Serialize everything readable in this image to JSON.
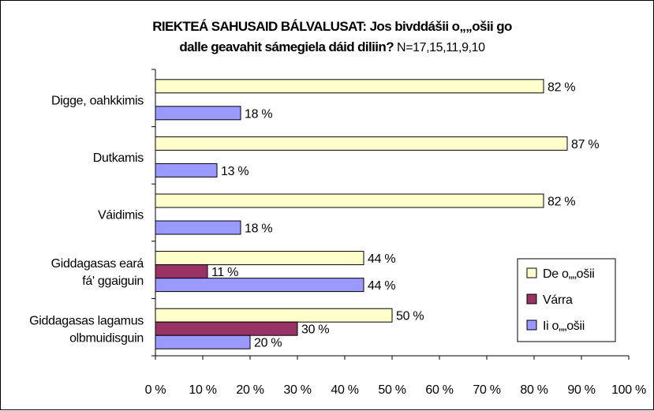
{
  "chart_data": {
    "type": "bar",
    "orientation": "horizontal",
    "title": "RIEKTEÁ SAHUSAID BÁLVALUSAT: Jos bivddášii o„„ošii go dalle geavahit sámegiela dáid diliin?",
    "title_lines": [
      [
        "RIEKTEÁ SAHUSAID BÁLVALUSAT: Jos bivddášii o„„ošii go"
      ],
      [
        "dalle geavahit sámegiela dáid diliin?",
        " N=17,15,11,9,10"
      ]
    ],
    "subtitle": "N=17,15,11,9,10",
    "categories": [
      [
        "Digge, oahkkimis"
      ],
      [
        "Dutkamis"
      ],
      [
        "Váidimis"
      ],
      [
        "Giddagasas eará",
        "fá' ggaiguin"
      ],
      [
        "Giddagasas lagamus",
        "olbmuidisguin"
      ]
    ],
    "series": [
      {
        "name": "De o„„ošii",
        "color": "#ffffcc",
        "values": [
          82,
          87,
          82,
          44,
          50
        ],
        "labels": [
          "82 %",
          "87 %",
          "82 %",
          "44 %",
          "50 %"
        ]
      },
      {
        "name": "Várra",
        "color": "#993366",
        "values": [
          null,
          null,
          null,
          11,
          30
        ],
        "labels": [
          "",
          "",
          "",
          "11 %",
          "30 %"
        ]
      },
      {
        "name": "Ii o„„ošii",
        "color": "#9999ff",
        "values": [
          18,
          13,
          18,
          44,
          20
        ],
        "labels": [
          "18 %",
          "13 %",
          "18 %",
          "44 %",
          "20 %"
        ]
      }
    ],
    "xlim": [
      0,
      100
    ],
    "xticks": [
      "0 %",
      "10 %",
      "20 %",
      "30 %",
      "40 %",
      "50 %",
      "60 %",
      "70 %",
      "80 %",
      "90 %",
      "100 %"
    ],
    "xlabel": "",
    "ylabel": "",
    "legend": "right",
    "grid": false
  }
}
